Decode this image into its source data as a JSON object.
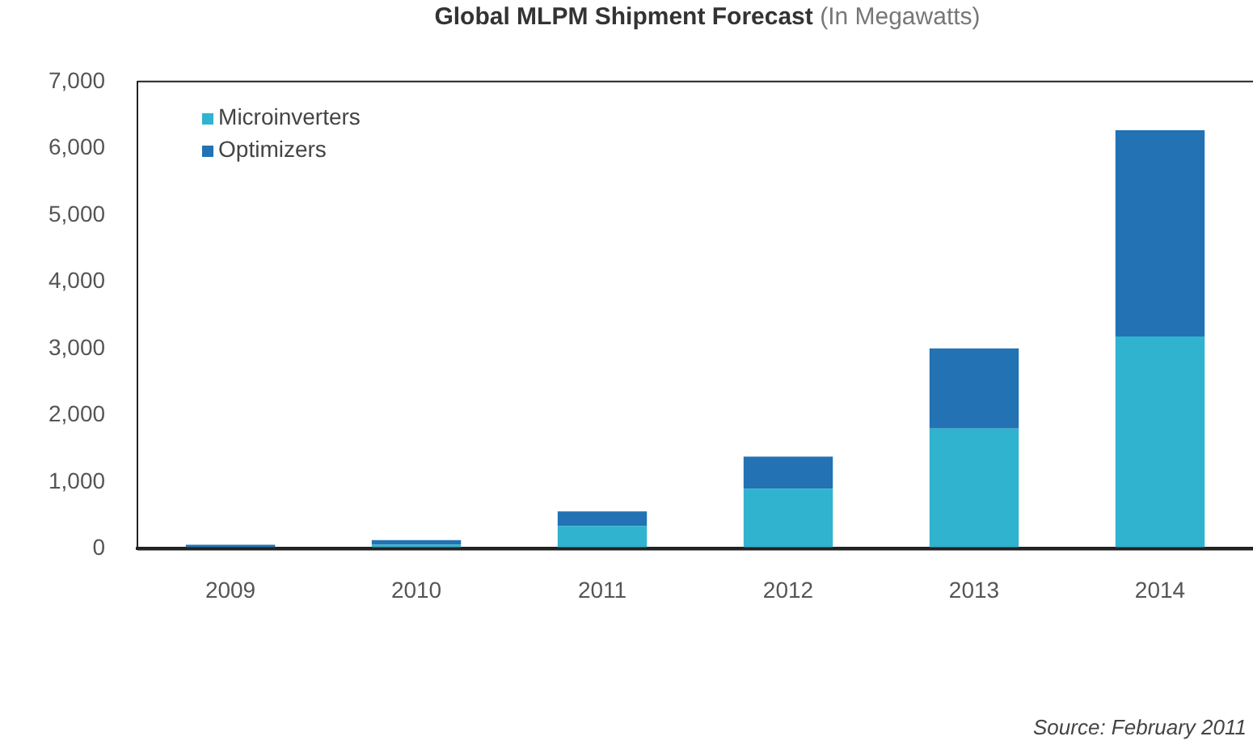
{
  "chart_data": {
    "type": "bar",
    "title": "Global MLPM Shipment Forecast",
    "subtitle": "(In Megawatts)",
    "categories": [
      "2009",
      "2010",
      "2011",
      "2012",
      "2013",
      "2014"
    ],
    "series": [
      {
        "name": "Microinverters",
        "color": "#2fb3cf",
        "values": [
          null,
          60,
          340,
          900,
          1800,
          3180
        ]
      },
      {
        "name": "Optimizers",
        "color": "#2272b4",
        "values": [
          60,
          70,
          220,
          480,
          1200,
          3090
        ]
      }
    ],
    "stacked": true,
    "ylim": [
      0,
      7000
    ],
    "yticks": [
      {
        "value": 0,
        "label": "0"
      },
      {
        "value": 1000,
        "label": "1,000"
      },
      {
        "value": 2000,
        "label": "2,000"
      },
      {
        "value": 3000,
        "label": "3,000"
      },
      {
        "value": 4000,
        "label": "4,000"
      },
      {
        "value": 5000,
        "label": "5,000"
      },
      {
        "value": 6000,
        "label": "6,000"
      },
      {
        "value": 7000,
        "label": "7,000"
      }
    ],
    "grid": false,
    "legend": "top left",
    "annotations": [
      "Source: February 2011"
    ]
  }
}
